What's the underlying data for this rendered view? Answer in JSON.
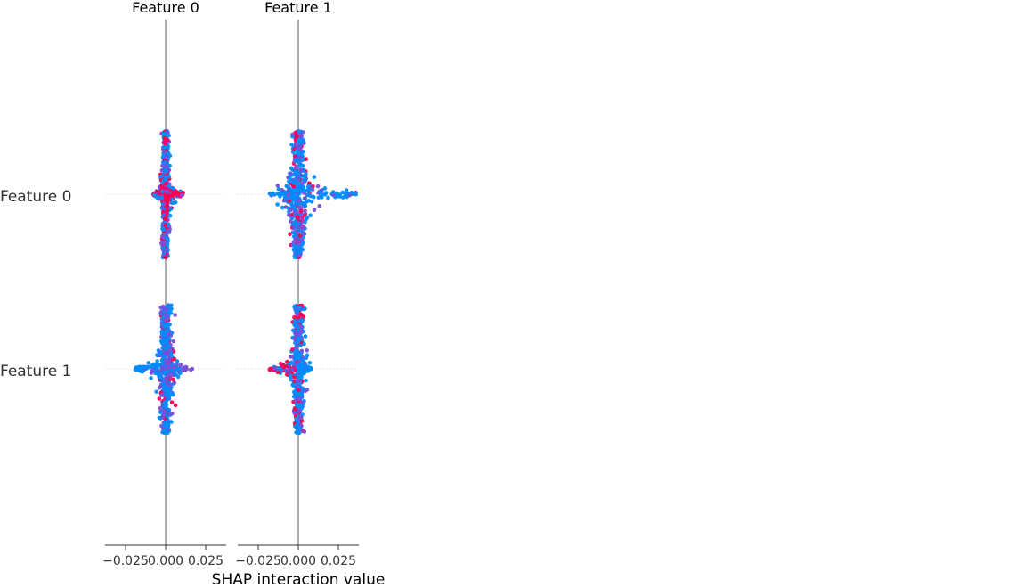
{
  "chart_data": {
    "type": "scatter",
    "subtype": "shap-interaction-summary-beeswarm",
    "columns": [
      "Feature 0",
      "Feature 1"
    ],
    "rows": [
      "Feature 0",
      "Feature 1"
    ],
    "xlabel": "SHAP interaction value",
    "xlim": [
      -0.04,
      0.04
    ],
    "xticks": [
      -0.025,
      0.0,
      0.025
    ],
    "xtick_labels": [
      "−0.025",
      "0.000",
      "0.025"
    ],
    "colormap": [
      "#008bfb",
      "#7b4ed8",
      "#ff0052"
    ],
    "zero_line_color": "#999999",
    "grid": false,
    "panels": [
      {
        "column": "Feature 0",
        "row": "Feature 0",
        "x_range": [
          -0.008,
          0.011
        ],
        "spine_halfwidth": 0.0015,
        "center_halfwidth": 0.004,
        "arms": {
          "left": {
            "reach": -0.008,
            "color": "#ff0052"
          },
          "right": {
            "reach": 0.011,
            "color": "#ff0052"
          }
        }
      },
      {
        "column": "Feature 1",
        "row": "Feature 0",
        "x_range": [
          -0.018,
          0.037
        ],
        "spine_halfwidth": 0.003,
        "center_halfwidth": 0.012,
        "arms": {
          "left": {
            "reach": -0.018,
            "color": "#008bfb"
          },
          "right": {
            "reach": 0.037,
            "color": "#008bfb"
          }
        }
      },
      {
        "column": "Feature 0",
        "row": "Feature 1",
        "x_range": [
          -0.019,
          0.017
        ],
        "spine_halfwidth": 0.0025,
        "center_halfwidth": 0.008,
        "arms": {
          "left": {
            "reach": -0.019,
            "color": "#008bfb"
          },
          "right": {
            "reach": 0.017,
            "color": "#7b4ed8"
          }
        }
      },
      {
        "column": "Feature 1",
        "row": "Feature 1",
        "x_range": [
          -0.018,
          0.008
        ],
        "spine_halfwidth": 0.0025,
        "center_halfwidth": 0.006,
        "arms": {
          "left": {
            "reach": -0.018,
            "color": "#ff0052"
          },
          "right": {
            "reach": 0.008,
            "color": "#008bfb"
          }
        }
      }
    ]
  }
}
